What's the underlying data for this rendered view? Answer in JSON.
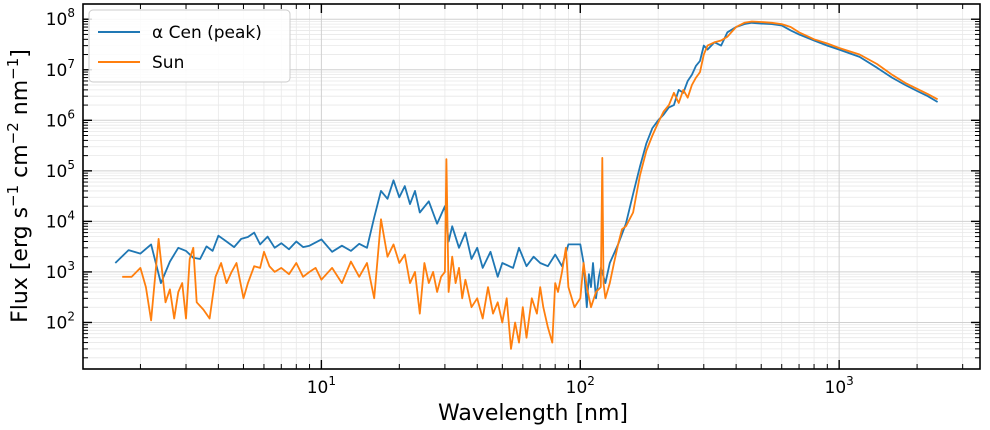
{
  "chart_data": {
    "type": "line",
    "xlabel": "Wavelength [nm]",
    "ylabel": "Flux [erg s$^{-1}$ cm$^{-2}$ nm$^{-1}$]",
    "ylabel_parts": [
      "Flux [erg s",
      "−1",
      " cm",
      "−2",
      " nm",
      "−1",
      "]"
    ],
    "x_scale": "log",
    "y_scale": "log",
    "xlim": [
      1.2,
      3500
    ],
    "ylim": [
      12,
      200000000
    ],
    "grid": true,
    "legend_position": "top-left",
    "x_ticks": [
      {
        "value": 10,
        "base": "10",
        "exp": "1"
      },
      {
        "value": 100,
        "base": "10",
        "exp": "2"
      },
      {
        "value": 1000,
        "base": "10",
        "exp": "3"
      }
    ],
    "y_ticks": [
      {
        "value": 100,
        "base": "10",
        "exp": "2"
      },
      {
        "value": 1000,
        "base": "10",
        "exp": "3"
      },
      {
        "value": 10000,
        "base": "10",
        "exp": "4"
      },
      {
        "value": 100000,
        "base": "10",
        "exp": "5"
      },
      {
        "value": 1000000,
        "base": "10",
        "exp": "6"
      },
      {
        "value": 10000000,
        "base": "10",
        "exp": "7"
      },
      {
        "value": 100000000,
        "base": "10",
        "exp": "8"
      }
    ],
    "series": [
      {
        "name": "α Cen (peak)",
        "color": "#1f77b4",
        "points": [
          [
            1.6,
            1500
          ],
          [
            1.8,
            2700
          ],
          [
            2.0,
            2300
          ],
          [
            2.2,
            3500
          ],
          [
            2.4,
            600
          ],
          [
            2.6,
            1600
          ],
          [
            2.8,
            3000
          ],
          [
            3.0,
            2600
          ],
          [
            3.2,
            1900
          ],
          [
            3.4,
            1800
          ],
          [
            3.6,
            3200
          ],
          [
            3.8,
            2600
          ],
          [
            4.0,
            5200
          ],
          [
            4.3,
            4000
          ],
          [
            4.6,
            3100
          ],
          [
            4.9,
            4500
          ],
          [
            5.2,
            4900
          ],
          [
            5.5,
            6000
          ],
          [
            5.8,
            3500
          ],
          [
            6.2,
            5000
          ],
          [
            6.6,
            3000
          ],
          [
            7.0,
            3700
          ],
          [
            7.5,
            2800
          ],
          [
            8.0,
            4000
          ],
          [
            8.5,
            3100
          ],
          [
            9.0,
            3300
          ],
          [
            10,
            4400
          ],
          [
            11,
            2500
          ],
          [
            12,
            3300
          ],
          [
            13,
            2600
          ],
          [
            14,
            3600
          ],
          [
            15,
            3000
          ],
          [
            16,
            12000
          ],
          [
            17,
            40000
          ],
          [
            18,
            28000
          ],
          [
            19,
            65000
          ],
          [
            20,
            30000
          ],
          [
            21,
            50000
          ],
          [
            22,
            22000
          ],
          [
            23,
            40000
          ],
          [
            24,
            15000
          ],
          [
            26,
            25000
          ],
          [
            28,
            9000
          ],
          [
            30,
            20000
          ],
          [
            31,
            4000
          ],
          [
            32,
            8000
          ],
          [
            34,
            3000
          ],
          [
            36,
            6000
          ],
          [
            38,
            1800
          ],
          [
            40,
            3000
          ],
          [
            42,
            1200
          ],
          [
            45,
            2500
          ],
          [
            48,
            800
          ],
          [
            50,
            1500
          ],
          [
            55,
            1200
          ],
          [
            58,
            3000
          ],
          [
            62,
            1300
          ],
          [
            66,
            2000
          ],
          [
            70,
            1500
          ],
          [
            75,
            1300
          ],
          [
            80,
            2200
          ],
          [
            85,
            1300
          ],
          [
            90,
            3500
          ],
          [
            100,
            3500
          ],
          [
            103,
            1500
          ],
          [
            106,
            200
          ],
          [
            108,
            900
          ],
          [
            110,
            500
          ],
          [
            112,
            1500
          ],
          [
            115,
            300
          ],
          [
            118,
            800
          ],
          [
            120,
            1200
          ],
          [
            125,
            600
          ],
          [
            130,
            1500
          ],
          [
            140,
            3500
          ],
          [
            150,
            9000
          ],
          [
            160,
            35000
          ],
          [
            170,
            120000
          ],
          [
            180,
            350000
          ],
          [
            190,
            700000
          ],
          [
            200,
            1000000
          ],
          [
            210,
            1300000
          ],
          [
            220,
            1800000
          ],
          [
            230,
            2000000
          ],
          [
            240,
            4000000
          ],
          [
            250,
            3500000
          ],
          [
            260,
            6000000
          ],
          [
            270,
            8000000
          ],
          [
            280,
            12000000
          ],
          [
            290,
            15000000
          ],
          [
            300,
            30000000
          ],
          [
            310,
            25000000
          ],
          [
            330,
            35000000
          ],
          [
            350,
            30000000
          ],
          [
            370,
            55000000
          ],
          [
            400,
            70000000
          ],
          [
            430,
            80000000
          ],
          [
            460,
            85000000
          ],
          [
            500,
            82000000
          ],
          [
            550,
            80000000
          ],
          [
            600,
            75000000
          ],
          [
            650,
            60000000
          ],
          [
            700,
            50000000
          ],
          [
            800,
            38000000
          ],
          [
            900,
            30000000
          ],
          [
            1000,
            25000000
          ],
          [
            1200,
            18000000
          ],
          [
            1400,
            11000000
          ],
          [
            1600,
            7000000
          ],
          [
            1800,
            5000000
          ],
          [
            2000,
            3800000
          ],
          [
            2200,
            3000000
          ],
          [
            2400,
            2300000
          ]
        ]
      },
      {
        "name": "Sun",
        "color": "#ff7f0e",
        "points": [
          [
            1.7,
            800
          ],
          [
            1.85,
            800
          ],
          [
            2.0,
            1200
          ],
          [
            2.1,
            500
          ],
          [
            2.2,
            110
          ],
          [
            2.35,
            4500
          ],
          [
            2.5,
            250
          ],
          [
            2.6,
            450
          ],
          [
            2.7,
            120
          ],
          [
            2.8,
            400
          ],
          [
            2.9,
            600
          ],
          [
            3.0,
            120
          ],
          [
            3.1,
            1800
          ],
          [
            3.2,
            3000
          ],
          [
            3.3,
            250
          ],
          [
            3.5,
            180
          ],
          [
            3.7,
            120
          ],
          [
            3.9,
            800
          ],
          [
            4.1,
            1500
          ],
          [
            4.3,
            600
          ],
          [
            4.5,
            1000
          ],
          [
            4.7,
            1500
          ],
          [
            5.0,
            300
          ],
          [
            5.2,
            600
          ],
          [
            5.5,
            1300
          ],
          [
            5.8,
            1200
          ],
          [
            6.0,
            2500
          ],
          [
            6.3,
            1300
          ],
          [
            6.6,
            1000
          ],
          [
            7.0,
            1200
          ],
          [
            7.5,
            900
          ],
          [
            8.0,
            1500
          ],
          [
            8.5,
            800
          ],
          [
            9.0,
            1000
          ],
          [
            9.5,
            1200
          ],
          [
            10,
            700
          ],
          [
            11,
            1200
          ],
          [
            12,
            600
          ],
          [
            13,
            1600
          ],
          [
            14,
            800
          ],
          [
            15,
            1500
          ],
          [
            16,
            300
          ],
          [
            17,
            11000
          ],
          [
            18,
            2000
          ],
          [
            19,
            3500
          ],
          [
            20,
            1500
          ],
          [
            21,
            2200
          ],
          [
            22,
            600
          ],
          [
            23,
            1000
          ],
          [
            24,
            150
          ],
          [
            25,
            1500
          ],
          [
            26,
            600
          ],
          [
            27,
            1000
          ],
          [
            28,
            400
          ],
          [
            29,
            800
          ],
          [
            30,
            1000
          ],
          [
            30.4,
            170000
          ],
          [
            31,
            400
          ],
          [
            32,
            2000
          ],
          [
            33,
            600
          ],
          [
            34,
            1200
          ],
          [
            35,
            300
          ],
          [
            36,
            700
          ],
          [
            38,
            200
          ],
          [
            40,
            300
          ],
          [
            42,
            120
          ],
          [
            44,
            500
          ],
          [
            46,
            150
          ],
          [
            48,
            250
          ],
          [
            50,
            100
          ],
          [
            52,
            300
          ],
          [
            54,
            30
          ],
          [
            56,
            100
          ],
          [
            58,
            40
          ],
          [
            60,
            200
          ],
          [
            62,
            50
          ],
          [
            65,
            300
          ],
          [
            68,
            150
          ],
          [
            70,
            500
          ],
          [
            72,
            200
          ],
          [
            75,
            80
          ],
          [
            78,
            40
          ],
          [
            80,
            600
          ],
          [
            82,
            400
          ],
          [
            85,
            1000
          ],
          [
            88,
            3000
          ],
          [
            90,
            500
          ],
          [
            95,
            200
          ],
          [
            100,
            300
          ],
          [
            103,
            1500
          ],
          [
            106,
            500
          ],
          [
            110,
            200
          ],
          [
            115,
            400
          ],
          [
            120,
            500
          ],
          [
            121.6,
            180000
          ],
          [
            123,
            600
          ],
          [
            125,
            300
          ],
          [
            130,
            600
          ],
          [
            135,
            1500
          ],
          [
            140,
            3500
          ],
          [
            145,
            7000
          ],
          [
            150,
            8000
          ],
          [
            160,
            15000
          ],
          [
            170,
            80000
          ],
          [
            180,
            250000
          ],
          [
            190,
            500000
          ],
          [
            200,
            900000
          ],
          [
            210,
            1500000
          ],
          [
            220,
            2000000
          ],
          [
            230,
            3500000
          ],
          [
            240,
            2200000
          ],
          [
            250,
            4000000
          ],
          [
            260,
            2800000
          ],
          [
            270,
            5000000
          ],
          [
            280,
            7000000
          ],
          [
            290,
            9000000
          ],
          [
            300,
            20000000
          ],
          [
            310,
            30000000
          ],
          [
            330,
            35000000
          ],
          [
            350,
            38000000
          ],
          [
            370,
            45000000
          ],
          [
            400,
            70000000
          ],
          [
            430,
            85000000
          ],
          [
            460,
            90000000
          ],
          [
            500,
            88000000
          ],
          [
            550,
            85000000
          ],
          [
            600,
            80000000
          ],
          [
            650,
            70000000
          ],
          [
            700,
            55000000
          ],
          [
            800,
            40000000
          ],
          [
            900,
            33000000
          ],
          [
            1000,
            27000000
          ],
          [
            1200,
            20000000
          ],
          [
            1400,
            13000000
          ],
          [
            1600,
            8000000
          ],
          [
            1800,
            5500000
          ],
          [
            2000,
            4200000
          ],
          [
            2200,
            3300000
          ],
          [
            2400,
            2600000
          ]
        ]
      }
    ]
  }
}
